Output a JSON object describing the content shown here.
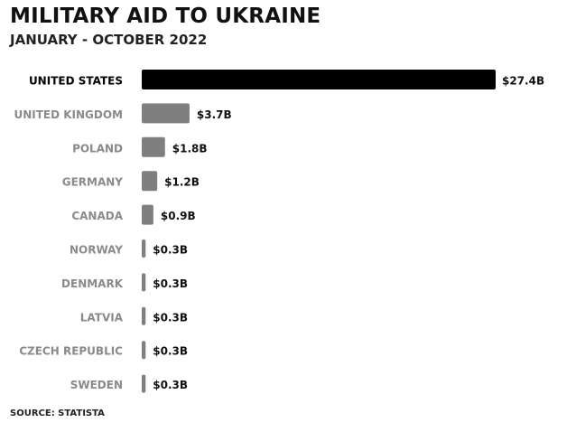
{
  "chart_data": {
    "type": "bar",
    "orientation": "horizontal",
    "title": "MILITARY AID TO UKRAINE",
    "subtitle": "JANUARY - OCTOBER 2022",
    "source": "SOURCE: STATISTA",
    "categories": [
      "UNITED STATES",
      "UNITED KINGDOM",
      "POLAND",
      "GERMANY",
      "CANADA",
      "NORWAY",
      "DENMARK",
      "LATVIA",
      "CZECH REPUBLIC",
      "SWEDEN"
    ],
    "values": [
      27.4,
      3.7,
      1.8,
      1.2,
      0.9,
      0.3,
      0.3,
      0.3,
      0.3,
      0.3
    ],
    "value_labels": [
      "$27.4B",
      "$3.7B",
      "$1.8B",
      "$1.2B",
      "$0.9B",
      "$0.3B",
      "$0.3B",
      "$0.3B",
      "$0.3B",
      "$0.3B"
    ],
    "unit": "billion USD",
    "xlim": [
      0,
      27.4
    ],
    "grid": false,
    "highlight_color": "#000000",
    "bar_color": "#7f7f7f",
    "highlight_label_color": "#000000",
    "label_color": "#8a8a8a"
  }
}
